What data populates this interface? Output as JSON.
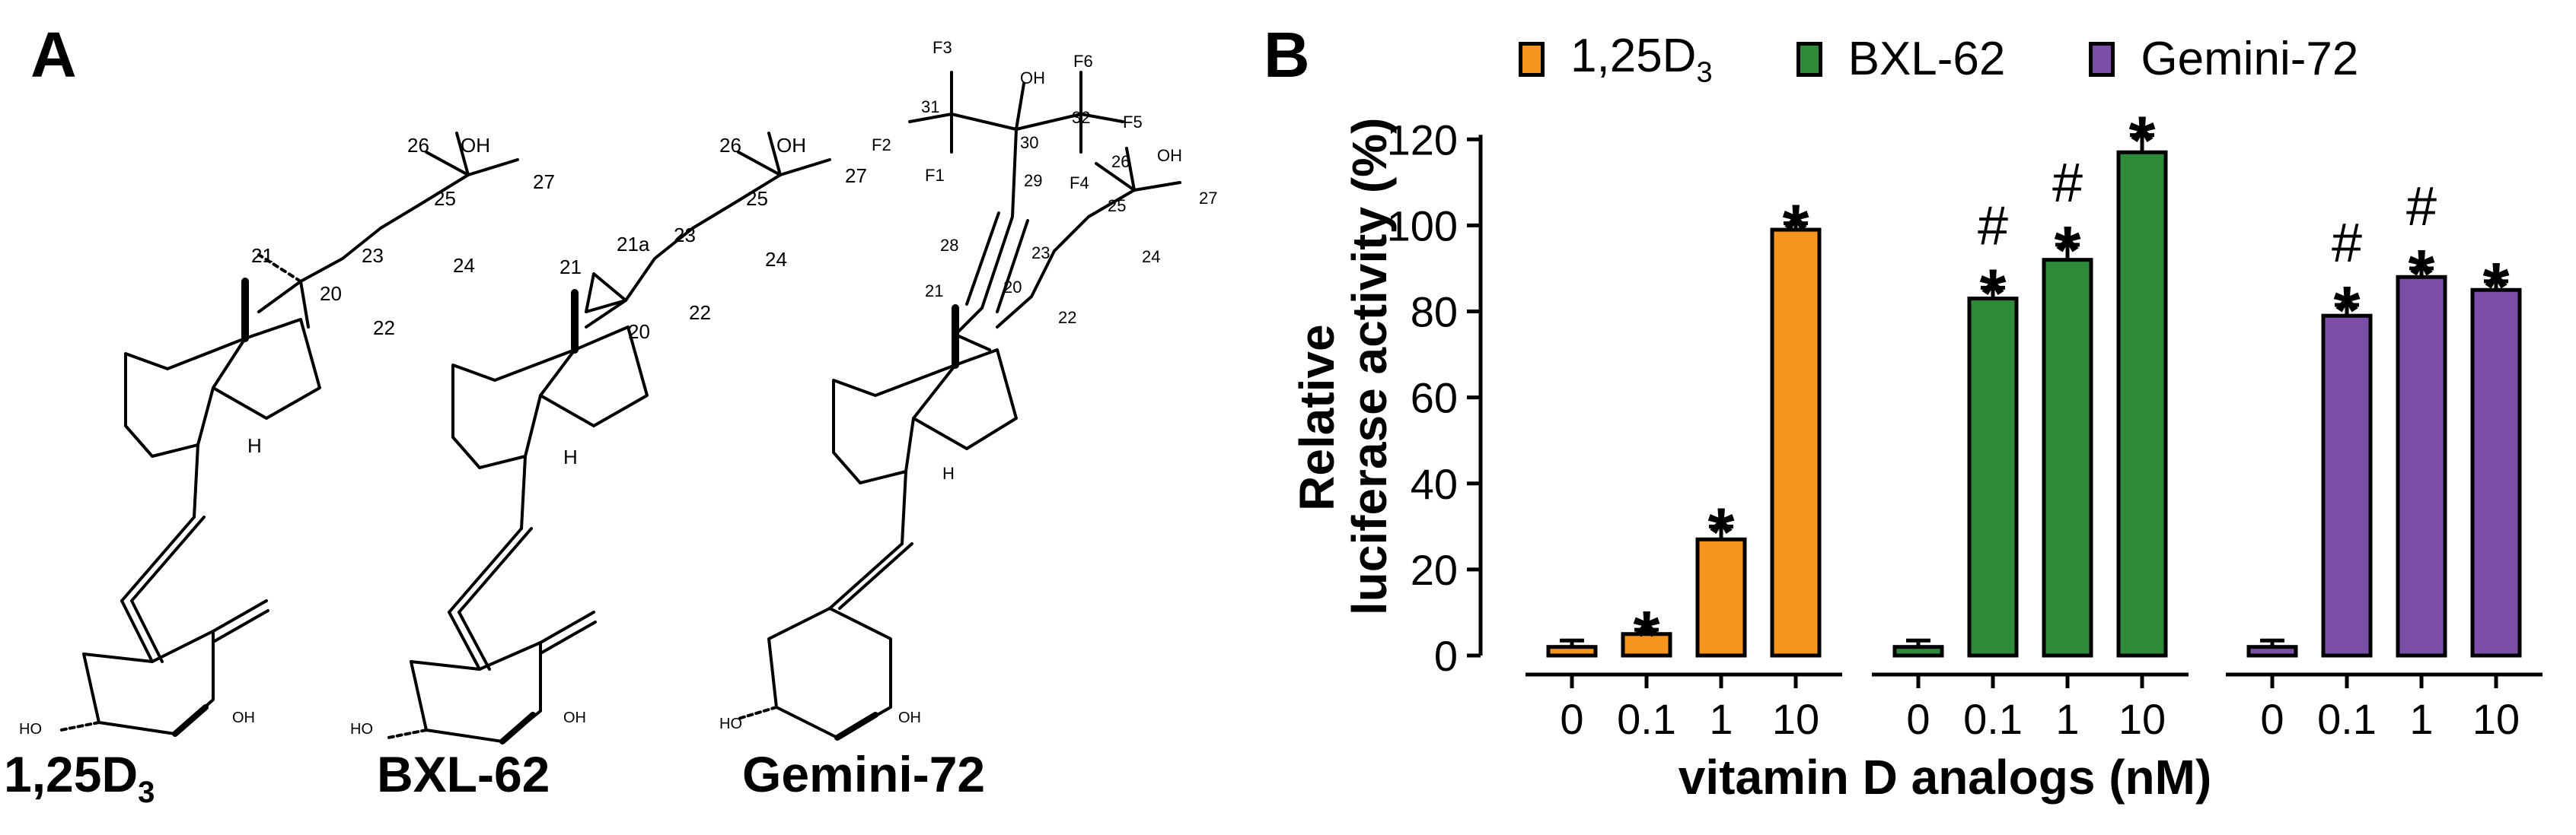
{
  "panels": {
    "a_label": "A",
    "b_label": "B"
  },
  "compounds": [
    {
      "name": "1,25D",
      "sub": "3"
    },
    {
      "name": "BXL-62",
      "sub": ""
    },
    {
      "name": "Gemini-72",
      "sub": ""
    }
  ],
  "structure_labels": {
    "mol1": [
      "26",
      "OH",
      "25",
      "27",
      "21",
      "23",
      "24",
      "20",
      "22",
      "H",
      "HO",
      "OH"
    ],
    "mol2": [
      "26",
      "OH",
      "25",
      "27",
      "21",
      "21a",
      "23",
      "24",
      "20",
      "22",
      "H",
      "HO",
      "OH"
    ],
    "mol3": [
      "F3",
      "OH",
      "F6",
      "31",
      "30",
      "32",
      "F5",
      "F2",
      "F1",
      "29",
      "F4",
      "26",
      "OH",
      "25",
      "27",
      "28",
      "23",
      "24",
      "21",
      "20",
      "22",
      "H",
      "HO",
      "OH"
    ]
  },
  "chart_data": {
    "type": "bar",
    "ylabel_line1": "Relative",
    "ylabel_line2": "luciferase activity (%)",
    "xlabel": "vitamin D analogs (nM)",
    "ylim": [
      0,
      125
    ],
    "yticks": [
      0,
      20,
      40,
      60,
      80,
      100,
      120
    ],
    "legend_position": "top",
    "colors": {
      "1,25D3": "#f7941d",
      "BXL-62": "#2e8b3a",
      "Gemini-72": "#7b4fa8"
    },
    "groups": [
      {
        "name": "1,25D3",
        "color": "#f7941d",
        "categories": [
          "0",
          "0.1",
          "1",
          "10"
        ],
        "values": [
          2,
          5,
          27,
          99
        ],
        "errors": [
          1.5,
          1,
          3,
          1.5
        ],
        "markers": [
          "",
          "*",
          "*",
          "*"
        ]
      },
      {
        "name": "BXL-62",
        "color": "#2e8b3a",
        "categories": [
          "0",
          "0.1",
          "1",
          "10"
        ],
        "values": [
          2,
          83,
          92,
          117
        ],
        "errors": [
          1.5,
          2.5,
          3.5,
          4
        ],
        "markers": [
          "",
          "#*",
          "#*",
          "*"
        ]
      },
      {
        "name": "Gemini-72",
        "color": "#7b4fa8",
        "categories": [
          "0",
          "0.1",
          "1",
          "10"
        ],
        "values": [
          2,
          79,
          88,
          85
        ],
        "errors": [
          1.5,
          2.5,
          2,
          2
        ],
        "markers": [
          "",
          "#*",
          "#*",
          "*"
        ]
      }
    ]
  }
}
